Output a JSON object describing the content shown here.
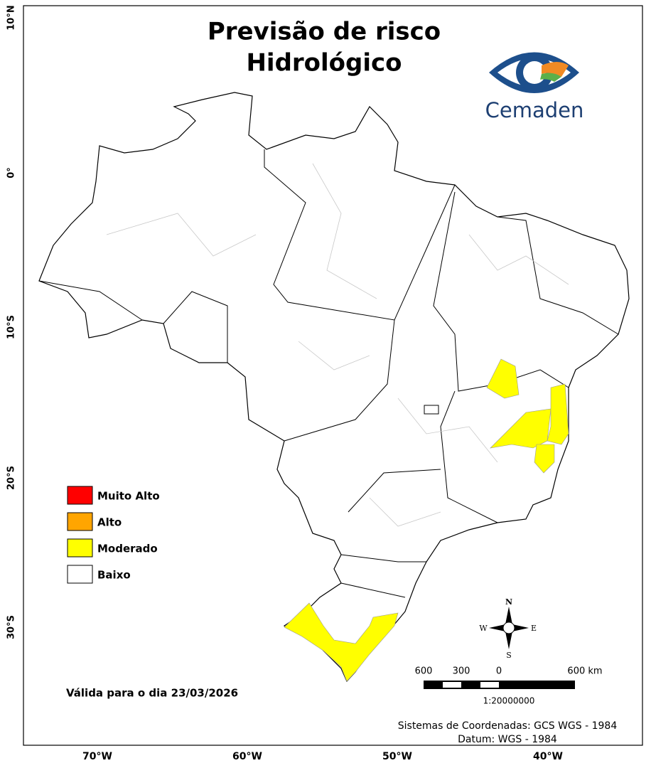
{
  "title": [
    "Previsão de risco",
    "Hidrológico"
  ],
  "logo": {
    "text": "Cemaden"
  },
  "legend": {
    "items": [
      {
        "label": "Muito Alto",
        "color": "#ff0000"
      },
      {
        "label": "Alto",
        "color": "#ffa500"
      },
      {
        "label": "Moderado",
        "color": "#ffff00"
      },
      {
        "label": "Baixo",
        "color": "#ffffff"
      }
    ]
  },
  "validity": "Válida para o dia 23/03/2026",
  "compass": {
    "north": "N",
    "south": "S",
    "west": "W",
    "east": "E"
  },
  "scale_bar": {
    "labels": [
      "600",
      "300",
      "0",
      "600 km"
    ],
    "ratio": "1:20000000"
  },
  "credits": [
    "Sistemas de Coordenadas: GCS WGS - 1984",
    "Datum: WGS - 1984"
  ],
  "grid_labels": {
    "latitude": [
      "10°N",
      "0°",
      "10°S",
      "20°S",
      "30°S"
    ],
    "longitude": [
      "70°W",
      "60°W",
      "50°W",
      "40°W"
    ]
  }
}
